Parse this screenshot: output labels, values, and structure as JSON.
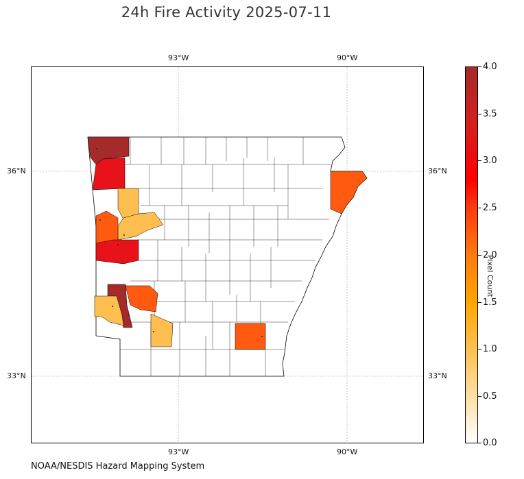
{
  "title": "24h Fire Activity 2025-07-11",
  "credit": "NOAA/NESDIS Hazard Mapping System",
  "map": {
    "region": "Arkansas",
    "lon_ticks": [
      "93°W",
      "90°W"
    ],
    "lat_ticks": [
      "36°N",
      "33°N"
    ],
    "gridlines": true
  },
  "colorbar": {
    "label": "Pixel Count",
    "ticks": [
      "0.0",
      "0.5",
      "1.0",
      "1.5",
      "2.0",
      "2.5",
      "3.0",
      "3.5",
      "4.0"
    ],
    "min": 0,
    "max": 4
  },
  "chart_data": {
    "type": "choropleth",
    "value_name": "Pixel Count",
    "scale": [
      0,
      4
    ],
    "counties": [
      {
        "value": 4
      },
      {
        "value": 3
      },
      {
        "value": 1
      },
      {
        "value": 1
      },
      {
        "value": 2
      },
      {
        "value": 3
      },
      {
        "value": 4
      },
      {
        "value": 1
      },
      {
        "value": 2
      },
      {
        "value": 1
      },
      {
        "value": 2
      },
      {
        "value": 2
      }
    ],
    "colors": {
      "4": "#a52a2a",
      "3": "#e8131a",
      "2": "#ff5a10",
      "1": "#ffbf50",
      "0": "#ffffff"
    }
  }
}
